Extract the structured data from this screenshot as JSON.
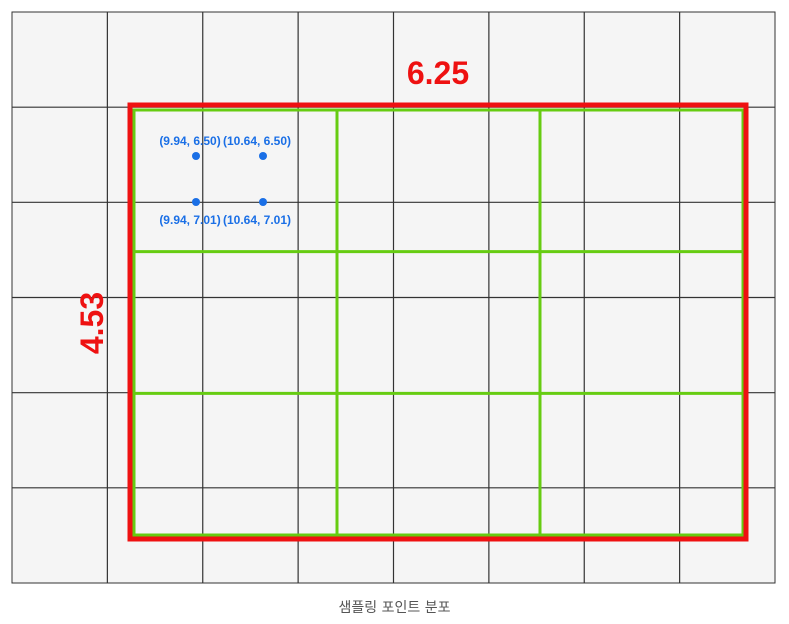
{
  "colors": {
    "background": "#f5f5f5",
    "grid_line": "#333333",
    "roi_box": "#ee1111",
    "bins": "#66cc11",
    "points": "#1a6fe6"
  },
  "base_grid": {
    "cols": 8,
    "rows": 6
  },
  "roi": {
    "width_label": "6.25",
    "height_label": "4.53"
  },
  "bins": {
    "cols": 3,
    "rows": 3
  },
  "sample_points": [
    {
      "label": "(9.94, 6.50)",
      "x": 9.94,
      "y": 6.5
    },
    {
      "label": "(10.64, 6.50)",
      "x": 10.64,
      "y": 6.5
    },
    {
      "label": "(9.94, 7.01)",
      "x": 9.94,
      "y": 7.01
    },
    {
      "label": "(10.64, 7.01)",
      "x": 10.64,
      "y": 7.01
    }
  ],
  "caption": "샘플링 포인트 분포"
}
